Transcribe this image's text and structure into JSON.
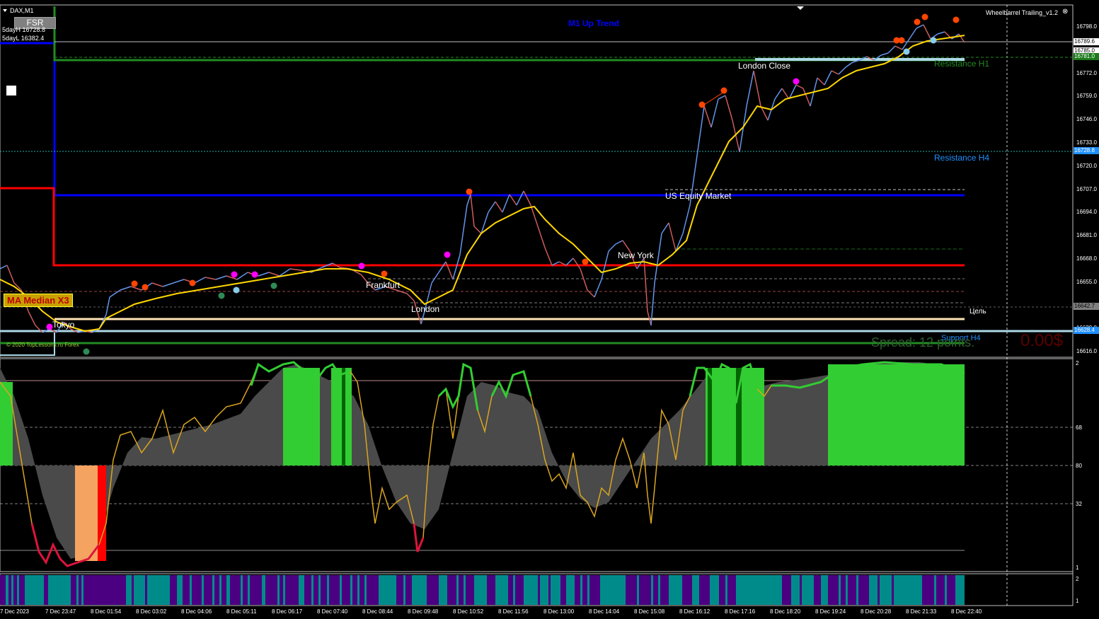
{
  "symbol_title": "DAX,M1",
  "fsr_button": "FSR",
  "five_day_high": "5dayH 16728.8",
  "five_day_low": "5dayL 16382.4",
  "trend_label": "M1 Up Trend",
  "indicator_name": "Wheelbarrel Trailing_v1.2",
  "ma_box_label": "MA Median X3",
  "copyright": "© 2020 TopLessons.ru Forex",
  "session_labels": {
    "tokyo": "Tokyo",
    "frankfurt": "Frankfurt",
    "london": "London",
    "new_york": "New York",
    "us_equity": "US Equity Market",
    "london_close": "London Close"
  },
  "level_labels": {
    "resistance_h1": "Resistance H1",
    "resistance_h4": "Resistance H4",
    "support_h4": "Support H4",
    "target": "Цель"
  },
  "spread_text": "Spread: 12 points.",
  "profit_text": "0.00$",
  "price_axis": [
    "16798.0",
    "16785.0",
    "16772.0",
    "16759.0",
    "16746.0",
    "16733.0",
    "16720.0",
    "16707.0",
    "16694.0",
    "16681.0",
    "16668.0",
    "16655.0",
    "16642.0",
    "16629.0",
    "16616.0"
  ],
  "price_tags": [
    {
      "value": "16789.6",
      "bg": "#ffffff",
      "fg": "#000000"
    },
    {
      "value": "16785.0",
      "bg": "#ffffff",
      "fg": "#000000"
    },
    {
      "value": "16781.0",
      "bg": "#1a7a1a",
      "fg": "#ffffff"
    },
    {
      "value": "16728.8",
      "bg": "#1e90ff",
      "fg": "#ffffff"
    },
    {
      "value": "16642.7",
      "bg": "#808080",
      "fg": "#000000"
    },
    {
      "value": "16628.4",
      "bg": "#1e90ff",
      "fg": "#ffffff"
    }
  ],
  "osc_axis": [
    "2",
    "68",
    "80",
    "32",
    "1"
  ],
  "bottom_axis": [
    "2",
    "1"
  ],
  "time_axis": [
    "7 Dec 2023",
    "7 Dec 23:47",
    "8 Dec 01:54",
    "8 Dec 03:02",
    "8 Dec 04:06",
    "8 Dec 05:11",
    "8 Dec 06:17",
    "8 Dec 07:40",
    "8 Dec 08:44",
    "8 Dec 09:48",
    "8 Dec 10:52",
    "8 Dec 11:56",
    "8 Dec 13:00",
    "8 Dec 14:04",
    "8 Dec 15:08",
    "8 Dec 16:12",
    "8 Dec 17:16",
    "8 Dec 18:20",
    "8 Dec 19:24",
    "8 Dec 20:28",
    "8 Dec 21:33",
    "8 Dec 22:40"
  ],
  "colors": {
    "price_up": "#6495ed",
    "price_down": "#cd5c5c",
    "ma": "#ffd700",
    "resistance_h1": "#228b22",
    "blue_level": "#0000ff",
    "red_level": "#ff0000",
    "osc_green": "#32cd32",
    "osc_grey": "#4a4a4a",
    "osc_line": "#daa520",
    "bar_teal": "#008b8b",
    "bar_purple": "#4b0082"
  }
}
